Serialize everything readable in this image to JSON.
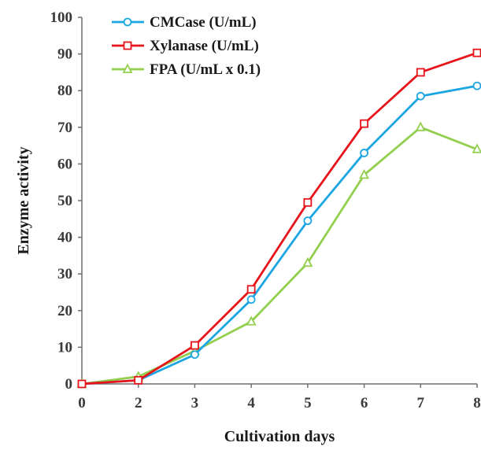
{
  "chart_data": {
    "type": "line",
    "categories": [
      "0",
      "2",
      "3",
      "4",
      "5",
      "6",
      "7",
      "8"
    ],
    "xlabel": "Cultivation days",
    "ylabel": "Enzyme activity",
    "ylim": [
      0,
      100
    ],
    "yticks": [
      "0",
      "10",
      "20",
      "30",
      "40",
      "50",
      "60",
      "70",
      "80",
      "90",
      "100"
    ],
    "grid": false,
    "legend_position": "top-left",
    "series": [
      {
        "name": "CMCase (U/mL)",
        "color": "#1ba6e3",
        "marker": "circle",
        "values": [
          0,
          1,
          8,
          23,
          44.5,
          63,
          78.5,
          81.3
        ]
      },
      {
        "name": "Xylanase (U/mL)",
        "color": "#e8141b",
        "marker": "square",
        "values": [
          0,
          1,
          10.5,
          25.8,
          49.5,
          71,
          85,
          90.3
        ]
      },
      {
        "name": "FPA (U/mL x 0.1)",
        "color": "#93cf4f",
        "marker": "triangle",
        "values": [
          0,
          2,
          9,
          17,
          33,
          57,
          70,
          64
        ]
      }
    ]
  }
}
